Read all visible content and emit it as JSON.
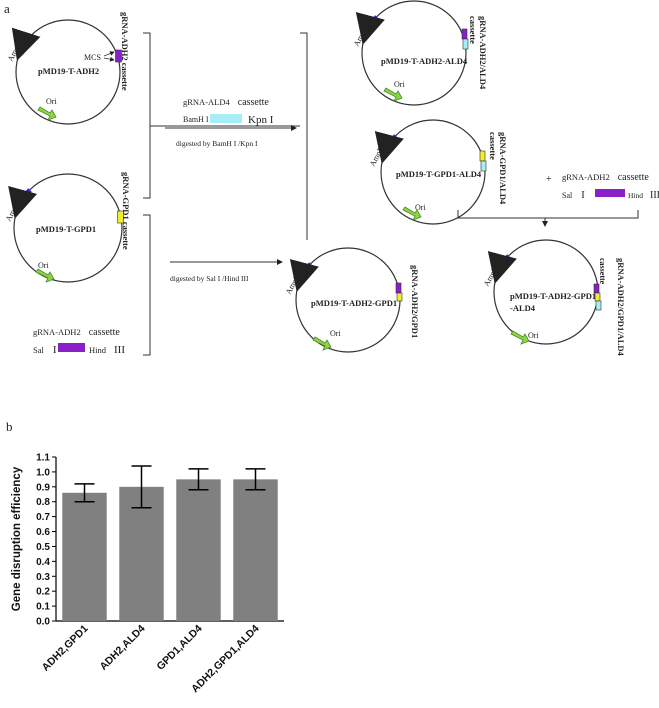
{
  "panel_a": {
    "label": "a",
    "plasmids": {
      "adh2": {
        "name": "pMD19-T-ADH2",
        "ampr": "AmpR",
        "ori": "Ori",
        "mcs": "MCS",
        "cassette": "gRNA-ADH2 cassette"
      },
      "gpd1": {
        "name": "pMD19-T-GPD1",
        "ampr": "AmpR",
        "ori": "Ori",
        "cassette": "gRNA-GPD1 cassette"
      },
      "adh2_ald4": {
        "name": "pMD19-T-ADH2-ALD4",
        "ampr": "AmpR",
        "ori": "Ori",
        "cassette_line1": "gRNA-ADH2/ALD4",
        "cassette_line2": "cassette"
      },
      "gpd1_ald4": {
        "name": "pMD19-T-GPD1-ALD4",
        "ampr": "AmpR",
        "ori": "Ori",
        "cassette_line1": "gRNA-GPD1/ALD4",
        "cassette_line2": "cassette"
      },
      "adh2_gpd1": {
        "name": "pMD19-T-ADH2-GPD1",
        "ampr": "AmpR",
        "ori": "Ori",
        "cassette": "gRNA-ADH2/GPD1"
      },
      "triple": {
        "name_line1": "pMD19-T-ADH2-GPD1",
        "name_line2": "-ALD4",
        "ampr": "AmpR",
        "ori": "Ori",
        "cassette_line1": "gRNA-ADH2/GPD1/ALD4",
        "cassette_line2": "cassette"
      }
    },
    "insert_ald4": {
      "title_a": "gRNA-ALD4",
      "title_b": "cassette",
      "left_site": "BamH I",
      "right_site": "Kpn I"
    },
    "insert_adh2_bottom": {
      "title_a": "gRNA-ADH2",
      "title_b": "cassette",
      "left_site": "Sal",
      "left_num": "I",
      "right_site": "Hind",
      "right_num": "III"
    },
    "insert_adh2_right": {
      "title_a": "gRNA-ADH2",
      "title_b": "cassette",
      "left_site": "Sal",
      "left_num": "I",
      "right_site": "Hind",
      "right_num": "III"
    },
    "digest_top": "digested by BamH I /Kpn I",
    "digest_bottom": "digested by Sal I /Hind III",
    "plus": "+",
    "colors": {
      "ampr": "#3b1fd6",
      "ori": "#8ed24a",
      "adh2": "#8a1fc8",
      "gpd1": "#f2ec2e",
      "ald4": "#a6eef6"
    }
  },
  "panel_b": {
    "label": "b"
  },
  "chart_data": {
    "type": "bar",
    "categories": [
      "ADH2,GPD1",
      "ADH2,ALD4",
      "GPD1,ALD4",
      "ADH2,GPD1,ALD4"
    ],
    "values": [
      0.86,
      0.9,
      0.95,
      0.95
    ],
    "errors": [
      0.06,
      0.14,
      0.07,
      0.07
    ],
    "ylabel": "Gene disruption efficiency",
    "ylim": [
      0.0,
      1.1
    ],
    "yticks": [
      "0.0",
      "0.1",
      "0.2",
      "0.3",
      "0.4",
      "0.5",
      "0.6",
      "0.7",
      "0.8",
      "0.9",
      "1.0",
      "1.1"
    ],
    "bar_color": "#808080",
    "grid": false
  }
}
